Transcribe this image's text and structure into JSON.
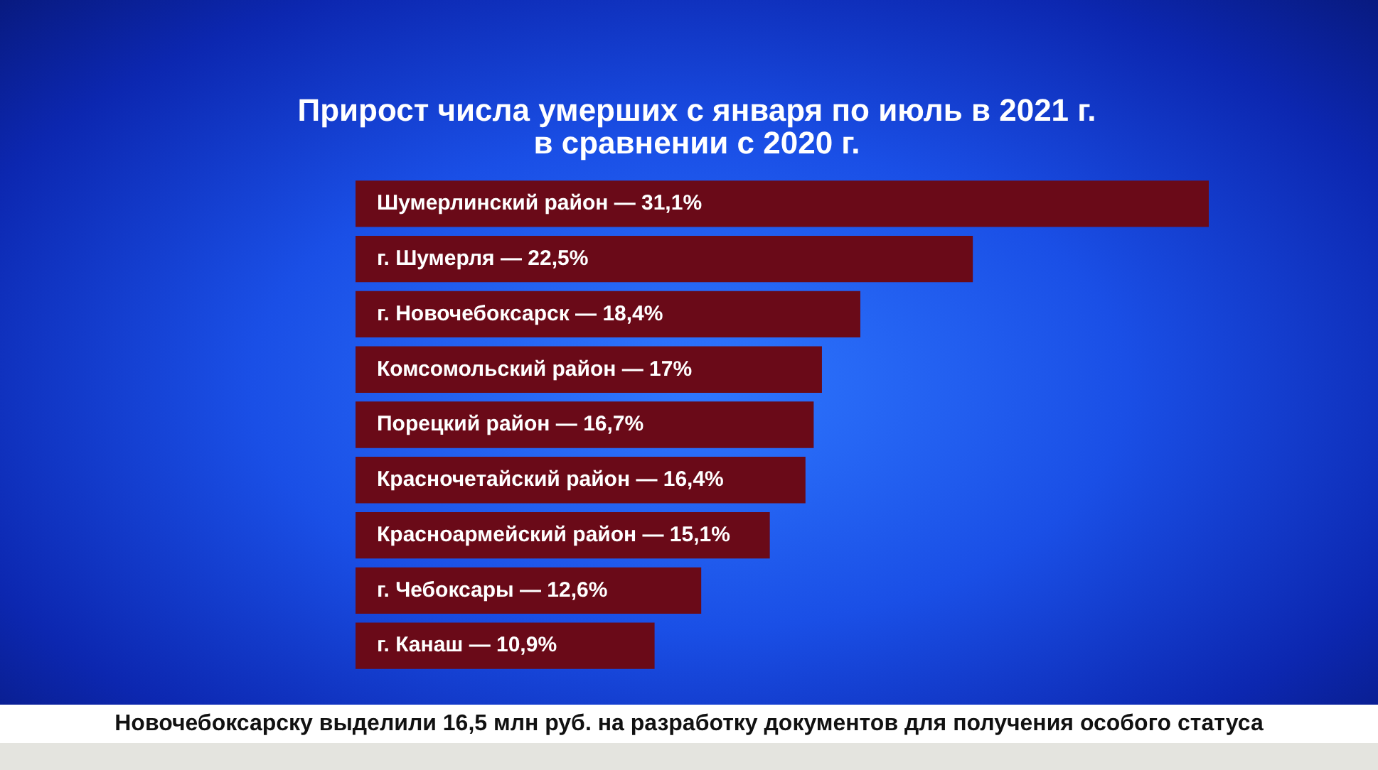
{
  "chart_data": {
    "type": "bar",
    "orientation": "horizontal",
    "title": "Прирост числа умерших с января по июль в 2021 г.\nв сравнении с 2020 г.",
    "categories": [
      "Шумерлинский район",
      "г. Шумерля",
      "г. Новочебоксарск",
      "Комсомольский район",
      "Порецкий район",
      "Красночетайский район",
      "Красноармейский район",
      "г. Чебоксары",
      "г. Канаш"
    ],
    "values": [
      31.1,
      22.5,
      18.4,
      17,
      16.7,
      16.4,
      15.1,
      12.6,
      10.9
    ],
    "value_labels": [
      "— 31,1%",
      "— 22,5%",
      "— 18,4%",
      "— 17%",
      "— 16,7%",
      "— 16,4%",
      "— 15,1%",
      "— 12,6%",
      "— 10,9%"
    ],
    "color": "#6a0a18",
    "annotations": [
      "Новочебоксарску выделили 16,5 млн руб. на разработку документов для получения особого статуса"
    ]
  }
}
